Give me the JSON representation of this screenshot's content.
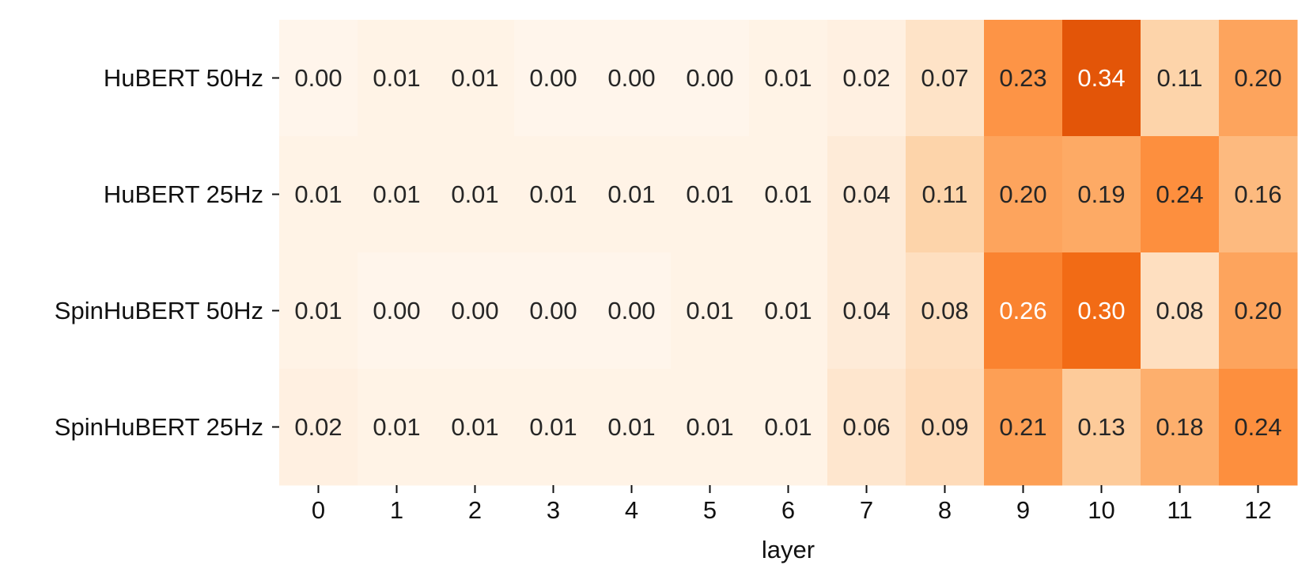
{
  "chart_data": {
    "type": "heatmap",
    "title": "",
    "xlabel": "layer",
    "ylabel": "",
    "x_categories": [
      "0",
      "1",
      "2",
      "3",
      "4",
      "5",
      "6",
      "7",
      "8",
      "9",
      "10",
      "11",
      "12"
    ],
    "y_categories": [
      "HuBERT 50Hz",
      "HuBERT 25Hz",
      "SpinHuBERT 50Hz",
      "SpinHuBERT 25Hz"
    ],
    "values": [
      [
        "0.00",
        "0.01",
        "0.01",
        "0.00",
        "0.00",
        "0.00",
        "0.01",
        "0.02",
        "0.07",
        "0.23",
        "0.34",
        "0.11",
        "0.20"
      ],
      [
        "0.01",
        "0.01",
        "0.01",
        "0.01",
        "0.01",
        "0.01",
        "0.01",
        "0.04",
        "0.11",
        "0.20",
        "0.19",
        "0.24",
        "0.16"
      ],
      [
        "0.01",
        "0.00",
        "0.00",
        "0.00",
        "0.00",
        "0.01",
        "0.01",
        "0.04",
        "0.08",
        "0.26",
        "0.30",
        "0.08",
        "0.20"
      ],
      [
        "0.02",
        "0.01",
        "0.01",
        "0.01",
        "0.01",
        "0.01",
        "0.01",
        "0.06",
        "0.09",
        "0.21",
        "0.13",
        "0.18",
        "0.24"
      ]
    ],
    "colormap": "Oranges",
    "color_low": "#fff5eb",
    "color_high": "#e6550d",
    "value_range": [
      0,
      0.34
    ],
    "grid": false,
    "colorbar": false
  }
}
